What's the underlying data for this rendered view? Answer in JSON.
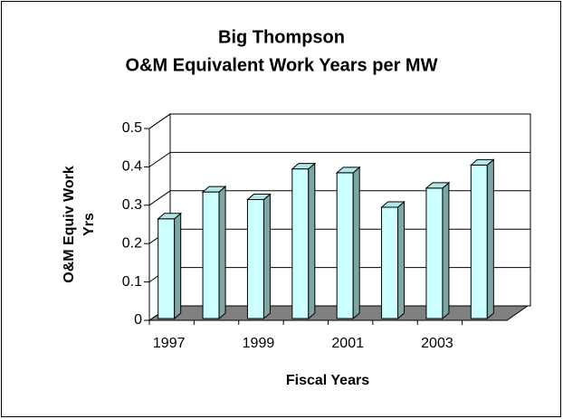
{
  "chart_data": {
    "type": "bar3d",
    "title": [
      "Big Thompson",
      "O&M Equivalent Work Years per MW"
    ],
    "y_label": [
      "O&M Equiv Work",
      "Yrs"
    ],
    "x_label": "Fiscal Years",
    "categories": [
      "1997",
      null,
      "1999",
      null,
      "2001",
      null,
      "2003",
      null
    ],
    "values": [
      0.26,
      0.33,
      0.31,
      0.39,
      0.38,
      0.29,
      0.34,
      0.4
    ],
    "color": "#ccffff",
    "ylim": [
      0,
      0.5
    ],
    "yticks": [
      0,
      0.1,
      0.2,
      0.3,
      0.4,
      0.5
    ],
    "grid": true
  }
}
